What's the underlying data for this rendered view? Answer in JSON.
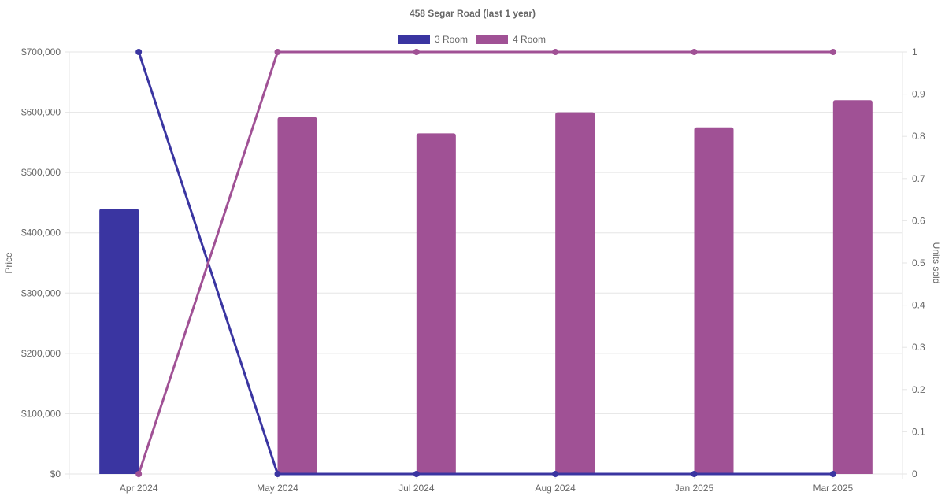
{
  "chart_data": {
    "type": "bar",
    "title": "458 Segar Road (last 1 year)",
    "categories": [
      "Apr 2024",
      "May 2024",
      "Jul 2024",
      "Aug 2024",
      "Jan 2025",
      "Mar 2025"
    ],
    "y_left": {
      "label": "Price",
      "range": [
        0,
        700000
      ],
      "ticks": [
        0,
        100000,
        200000,
        300000,
        400000,
        500000,
        600000,
        700000
      ],
      "tick_labels": [
        "$0",
        "$100,000",
        "$200,000",
        "$300,000",
        "$400,000",
        "$500,000",
        "$600,000",
        "$700,000"
      ]
    },
    "y_right": {
      "label": "Units sold",
      "range": [
        0,
        1
      ],
      "ticks": [
        0,
        0.1,
        0.2,
        0.3,
        0.4,
        0.5,
        0.6,
        0.7,
        0.8,
        0.9,
        1
      ],
      "tick_labels": [
        "0",
        "0.1",
        "0.2",
        "0.3",
        "0.4",
        "0.5",
        "0.6",
        "0.7",
        "0.8",
        "0.9",
        "1"
      ]
    },
    "series": [
      {
        "name": "3 Room",
        "color": "#3a35a1",
        "price": [
          440000,
          null,
          null,
          null,
          null,
          null
        ],
        "units": [
          1,
          0,
          0,
          0,
          0,
          0
        ]
      },
      {
        "name": "4 Room",
        "color": "#a05195",
        "price": [
          null,
          592000,
          565000,
          600000,
          575000,
          620000
        ],
        "units": [
          0,
          1,
          1,
          1,
          1,
          1
        ]
      }
    ],
    "grid": true,
    "legend_position": "top"
  }
}
